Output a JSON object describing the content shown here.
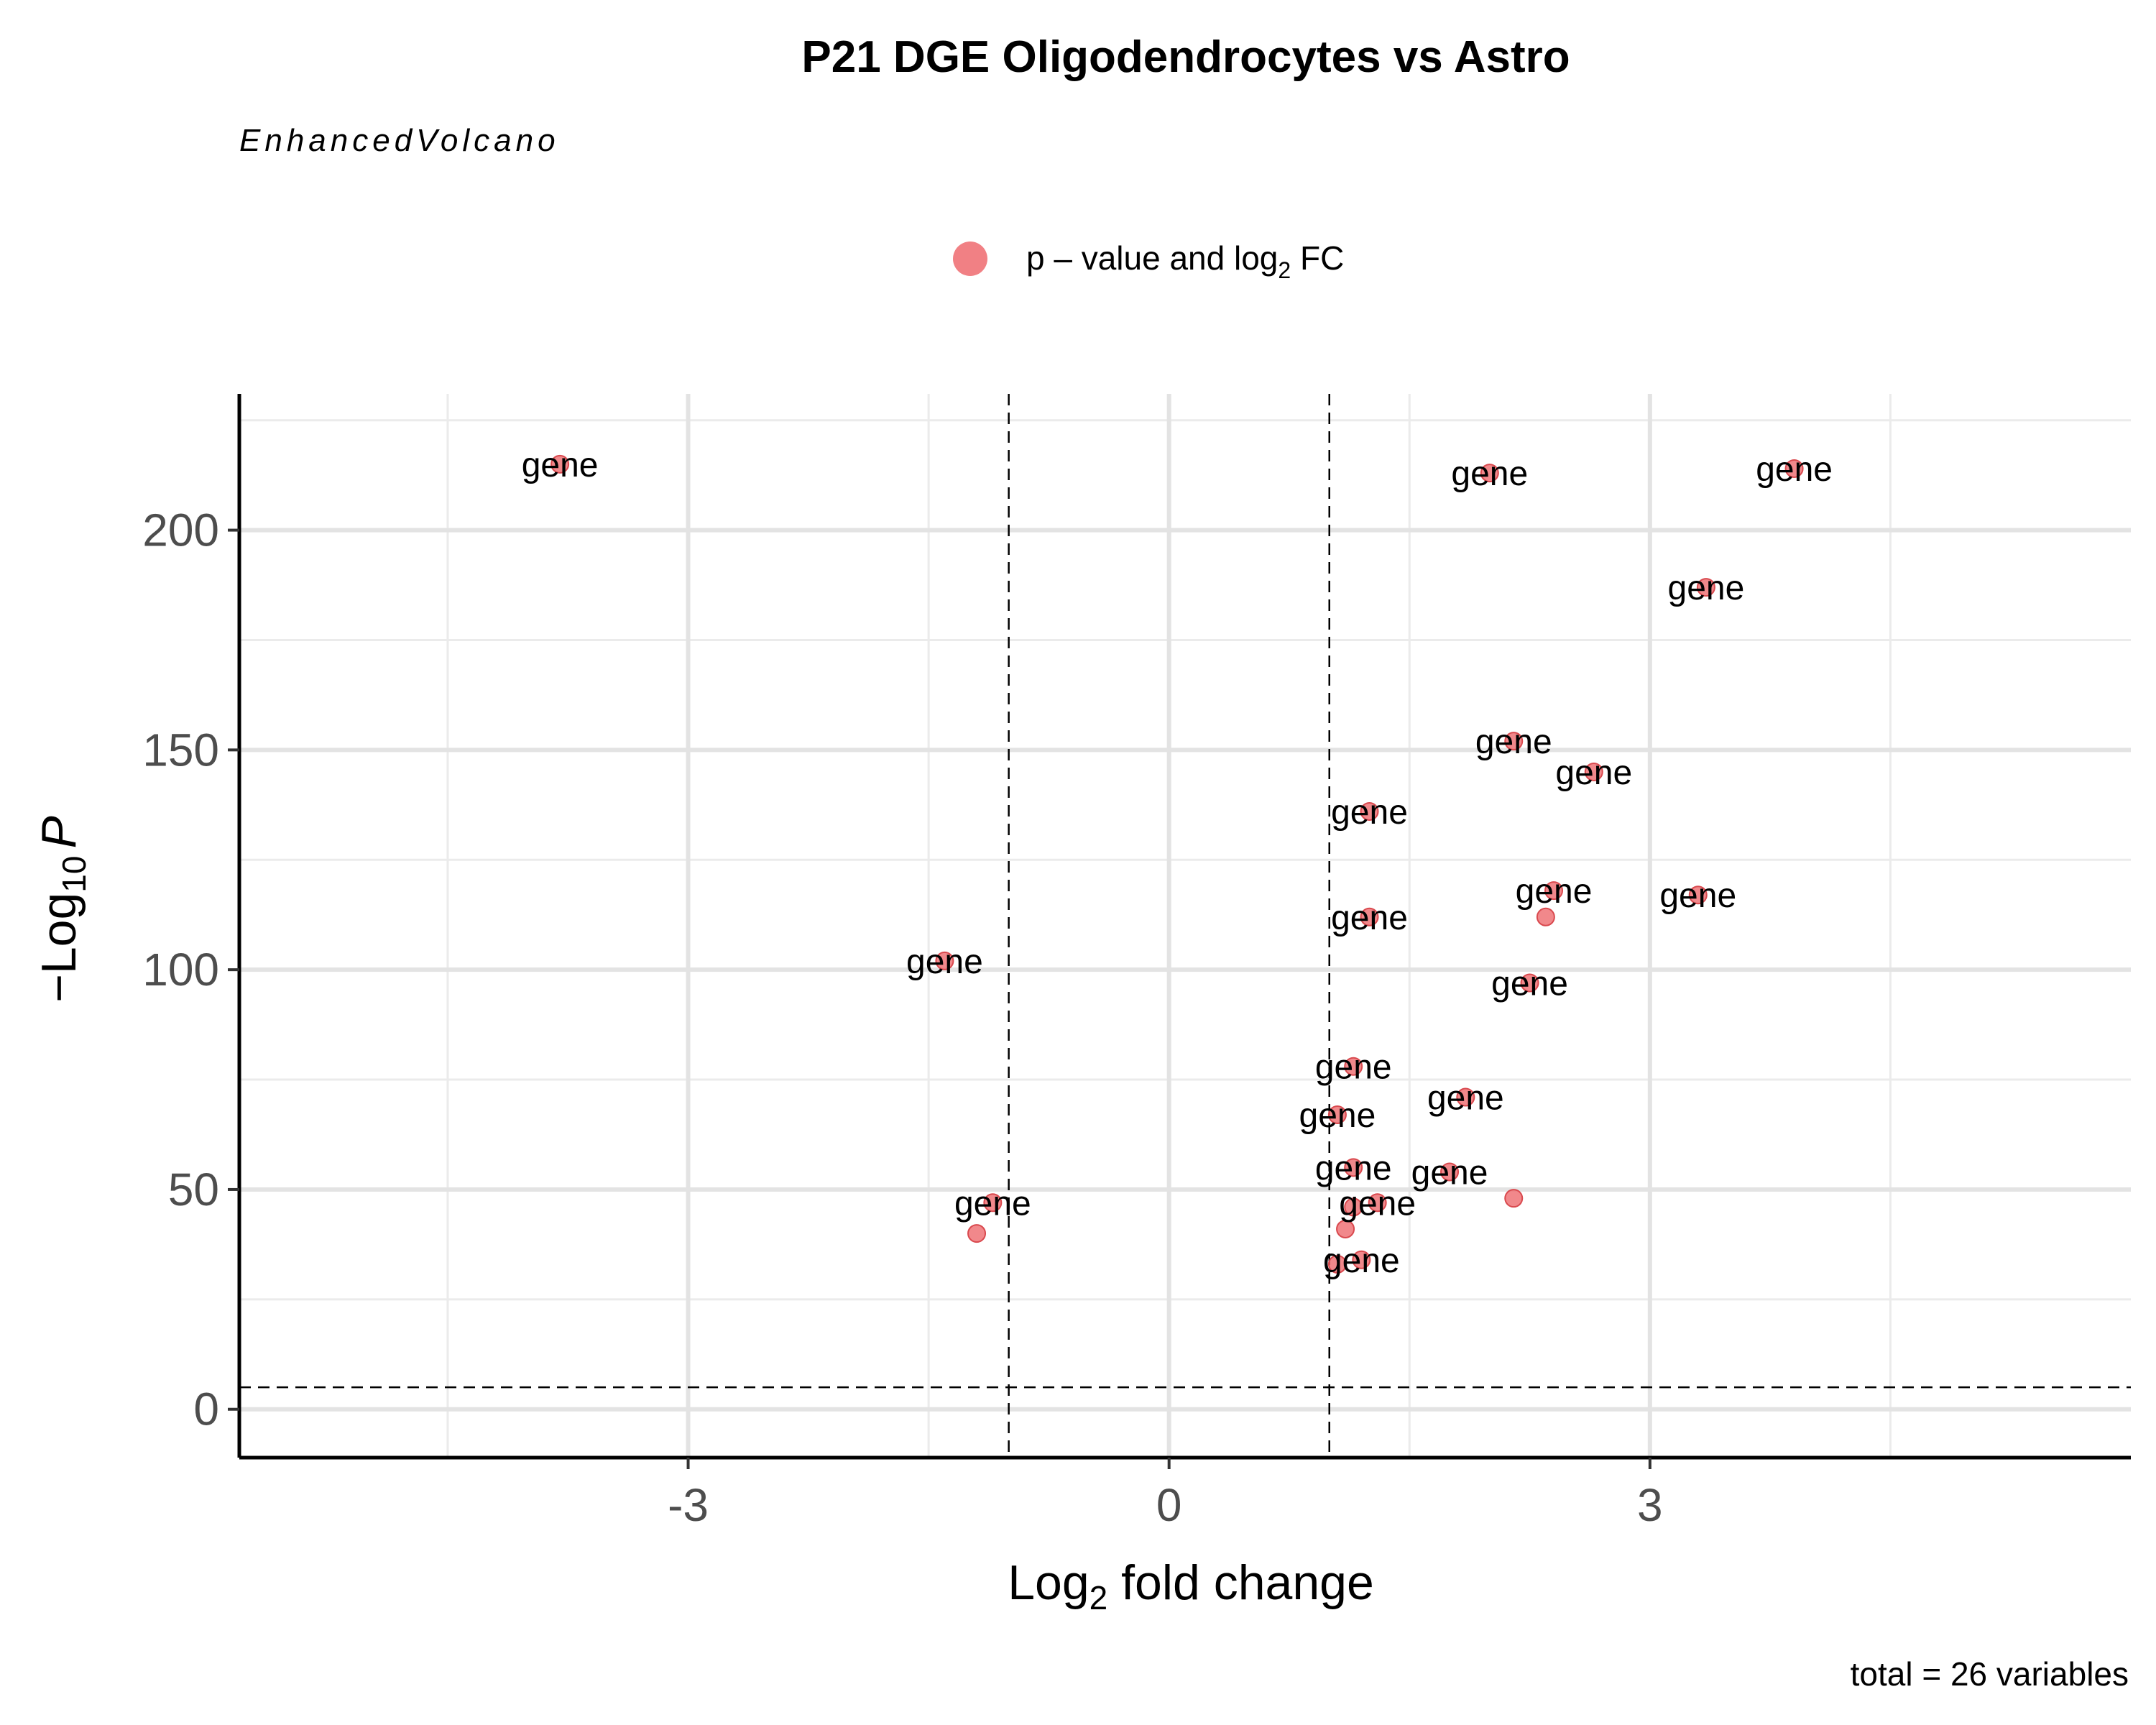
{
  "chart_data": {
    "type": "scatter",
    "title": "P21 DGE Oligodendrocytes vs Astro",
    "subtitle": "EnhancedVolcano",
    "xlabel": "Log2 fold change",
    "xlabel_parts": {
      "base": "Log",
      "sub": "2",
      "rest": " fold change"
    },
    "ylabel": "−Log10 P",
    "ylabel_parts": {
      "prefix": "−Log",
      "sub": "10",
      "italic": "P"
    },
    "caption": "total = 26 variables",
    "legend": {
      "position": "top",
      "entries": [
        {
          "label": "p – value and log2 FC",
          "parts": {
            "base": "p – value and log",
            "sub": "2",
            "rest": " FC"
          },
          "color": "#EE6A6E"
        }
      ]
    },
    "xlim": [
      -5.8,
      6.0
    ],
    "ylim": [
      -11,
      231
    ],
    "xticks": [
      -3,
      0,
      3
    ],
    "xtick_labels": [
      "-3",
      "0",
      "3"
    ],
    "yticks": [
      0,
      50,
      100,
      150,
      200
    ],
    "ytick_labels": [
      "0",
      "50",
      "100",
      "150",
      "200"
    ],
    "x_minor_grid": [
      -4.5,
      -1.5,
      1.5,
      4.5
    ],
    "y_minor_grid": [
      25,
      75,
      125,
      175,
      225
    ],
    "grid": true,
    "cutoff_lines": {
      "fc": [
        -1,
        1
      ],
      "p": 5
    },
    "point_color": "#EE6A6E",
    "series": [
      {
        "name": "p – value and log2 FC",
        "points": [
          {
            "x": -3.8,
            "y": 215,
            "label": "gene"
          },
          {
            "x": 2.0,
            "y": 213,
            "label": "gene"
          },
          {
            "x": 3.9,
            "y": 214,
            "label": "gene"
          },
          {
            "x": 3.35,
            "y": 187,
            "label": "gene"
          },
          {
            "x": 2.15,
            "y": 152,
            "label": "gene"
          },
          {
            "x": 2.65,
            "y": 145,
            "label": "gene"
          },
          {
            "x": 1.25,
            "y": 136,
            "label": "gene"
          },
          {
            "x": 2.4,
            "y": 118,
            "label": "gene"
          },
          {
            "x": 3.3,
            "y": 117,
            "label": "gene"
          },
          {
            "x": 2.35,
            "y": 112,
            "label": ""
          },
          {
            "x": 1.25,
            "y": 112,
            "label": "gene"
          },
          {
            "x": -1.4,
            "y": 102,
            "label": "gene"
          },
          {
            "x": 2.25,
            "y": 97,
            "label": "gene"
          },
          {
            "x": 1.15,
            "y": 78,
            "label": "gene"
          },
          {
            "x": 1.85,
            "y": 71,
            "label": "gene"
          },
          {
            "x": 1.05,
            "y": 67,
            "label": "gene"
          },
          {
            "x": 1.15,
            "y": 55,
            "label": "gene"
          },
          {
            "x": 1.75,
            "y": 54,
            "label": "gene"
          },
          {
            "x": 2.15,
            "y": 48,
            "label": ""
          },
          {
            "x": -1.1,
            "y": 47,
            "label": "gene"
          },
          {
            "x": 1.3,
            "y": 47,
            "label": "gene"
          },
          {
            "x": 1.15,
            "y": 46,
            "label": ""
          },
          {
            "x": 1.1,
            "y": 41,
            "label": ""
          },
          {
            "x": -1.2,
            "y": 40,
            "label": ""
          },
          {
            "x": 1.2,
            "y": 34,
            "label": "gene"
          },
          {
            "x": 1.05,
            "y": 33,
            "label": ""
          }
        ]
      }
    ]
  }
}
